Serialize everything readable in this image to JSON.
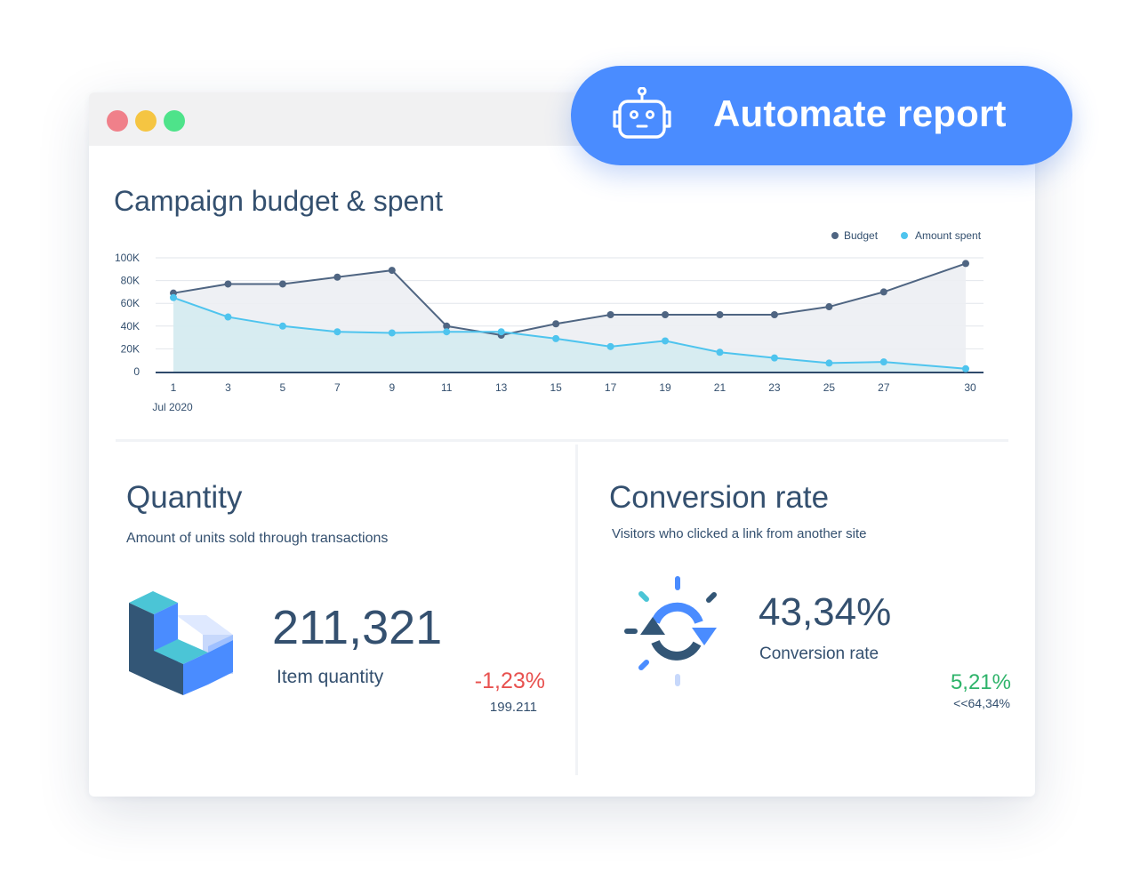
{
  "window": {
    "controls": [
      {
        "name": "close",
        "color": "#f0808a"
      },
      {
        "name": "minimize",
        "color": "#f5c542"
      },
      {
        "name": "maximize",
        "color": "#4ee38a"
      }
    ]
  },
  "automate": {
    "label": "Automate report",
    "icon": "robot-icon",
    "color": "#4a8cff"
  },
  "chart": {
    "title": "Campaign budget & spent"
  },
  "chart_data": {
    "type": "area",
    "title": "Campaign budget & spent",
    "x": [
      1,
      3,
      5,
      7,
      9,
      11,
      13,
      15,
      17,
      19,
      21,
      23,
      25,
      27,
      30
    ],
    "x_ticks": [
      "1",
      "3",
      "5",
      "7",
      "9",
      "11",
      "13",
      "15",
      "17",
      "19",
      "21",
      "23",
      "25",
      "27",
      "30"
    ],
    "x_sublabel": "Jul 2020",
    "y_ticks": [
      "0",
      "20K",
      "40K",
      "60K",
      "80K",
      "100K"
    ],
    "ylim": [
      0,
      100000
    ],
    "grid": true,
    "legend_position": "top-right",
    "series": [
      {
        "name": "Budget",
        "color": "#4f6582",
        "values": [
          69000,
          77000,
          77000,
          83000,
          89000,
          40000,
          32000,
          42000,
          50000,
          50000,
          50000,
          50000,
          57000,
          70000,
          95000
        ]
      },
      {
        "name": "Amount spent",
        "color": "#4ec4ee",
        "values": [
          65000,
          48000,
          40000,
          35000,
          34000,
          35000,
          35000,
          29000,
          22000,
          27000,
          17000,
          12000,
          7500,
          8500,
          2500
        ]
      }
    ]
  },
  "quantity": {
    "title": "Quantity",
    "subtitle": "Amount of units sold through transactions",
    "value": "211,321",
    "value_label": "Item quantity",
    "delta": "-1,23%",
    "delta_color": "#e8514f",
    "previous": "199.211",
    "icon": "stacked-cubes-icon"
  },
  "conversion": {
    "title": "Conversion rate",
    "subtitle": "Visitors who clicked a link from another site",
    "value": "43,34%",
    "value_label": "Conversion rate",
    "delta": "5,21%",
    "delta_color": "#2eb36a",
    "previous": "<<64,34%",
    "icon": "refresh-cycle-icon"
  }
}
